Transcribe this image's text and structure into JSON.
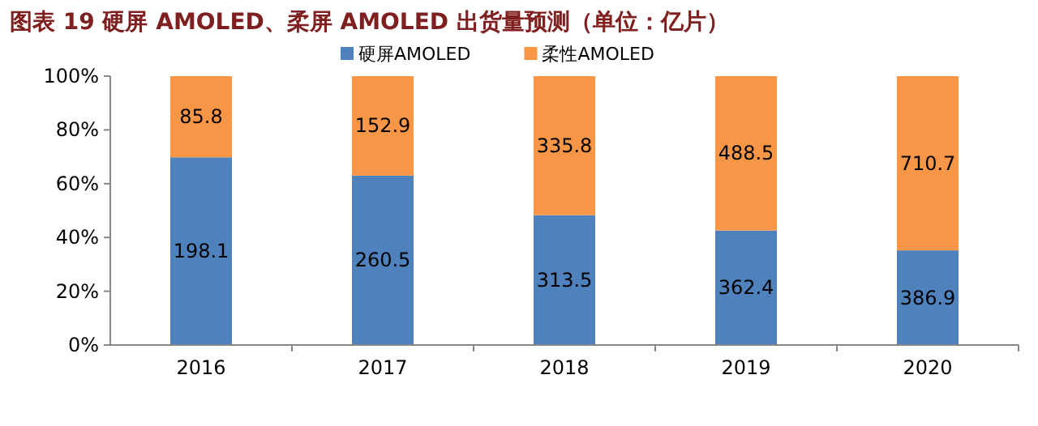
{
  "chart_data": {
    "type": "bar",
    "title": "图表 19  硬屏 AMOLED、柔屏 AMOLED 出货量预测（单位：亿片）",
    "categories": [
      "2016",
      "2017",
      "2018",
      "2019",
      "2020"
    ],
    "stacked": true,
    "series": [
      {
        "name": "硬屏AMOLED",
        "color": "#4f81bd",
        "values": [
          69.8,
          63.0,
          48.3,
          42.6,
          35.2
        ]
      },
      {
        "name": "柔性AMOLED",
        "color": "#f79646",
        "values": [
          30.2,
          37.0,
          51.7,
          57.4,
          64.8
        ]
      }
    ],
    "ylim": [
      0,
      100
    ],
    "yticks": [
      {
        "value": 0,
        "label": "0%"
      },
      {
        "value": 20,
        "label": "20%"
      },
      {
        "value": 40,
        "label": "40%"
      },
      {
        "value": 60,
        "label": "60%"
      },
      {
        "value": 80,
        "label": "80%"
      },
      {
        "value": 100,
        "label": "100%"
      }
    ],
    "legend": "top",
    "annotations": [
      "198.1",
      "260.5",
      "313.5",
      "362.4",
      "386.9",
      "85.8",
      "152.9",
      "335.8",
      "488.5",
      "710.7"
    ]
  }
}
